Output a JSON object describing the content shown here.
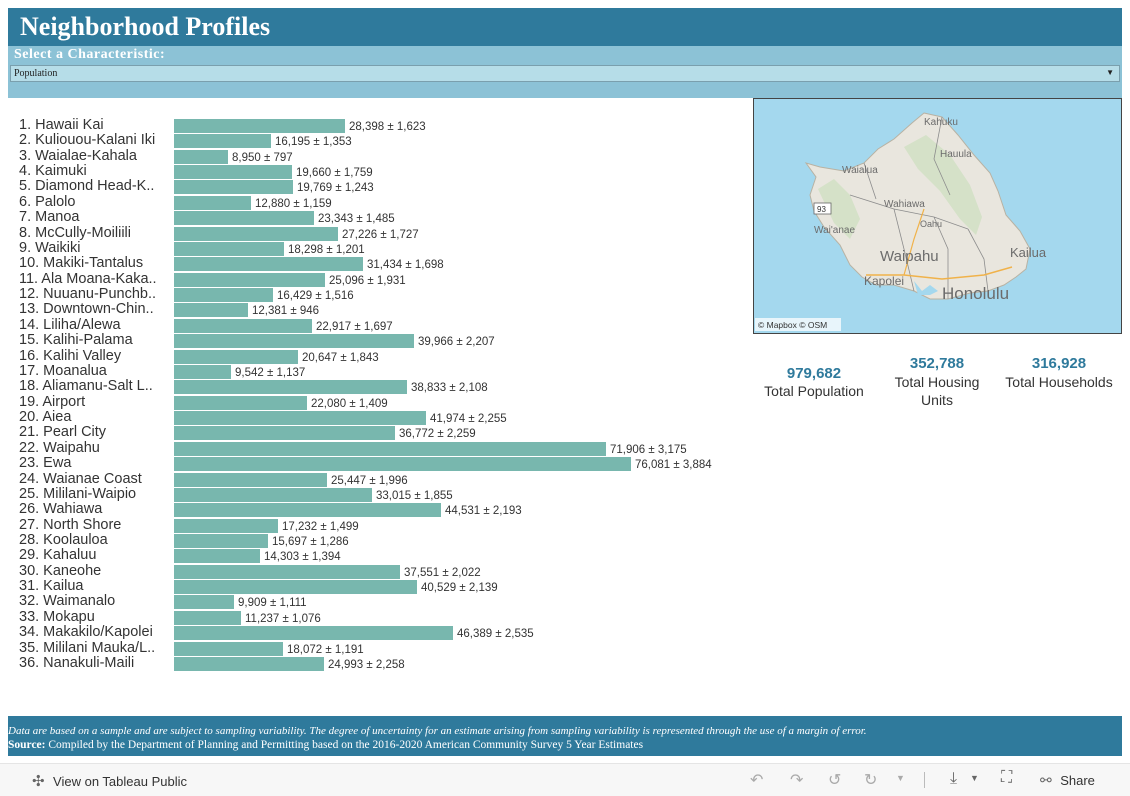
{
  "header": {
    "title": "Neighborhood Profiles"
  },
  "selector": {
    "label": "Select a Characteristic:",
    "selected": "Population"
  },
  "chart_data": {
    "type": "bar",
    "orientation": "horizontal",
    "title": "Population",
    "categories": [
      "1. Hawaii Kai",
      "2. Kuliouou-Kalani Iki",
      "3. Waialae-Kahala",
      "4. Kaimuki",
      "5. Diamond Head-K..",
      "6. Palolo",
      "7. Manoa",
      "8. McCully-Moiliili",
      "9. Waikiki",
      "10. Makiki-Tantalus",
      "11. Ala Moana-Kaka..",
      "12. Nuuanu-Punchb..",
      "13. Downtown-Chin..",
      "14. Liliha/Alewa",
      "15. Kalihi-Palama",
      "16. Kalihi Valley",
      "17. Moanalua",
      "18. Aliamanu-Salt L..",
      "19. Airport",
      "20. Aiea",
      "21. Pearl City",
      "22. Waipahu",
      "23. Ewa",
      "24. Waianae Coast",
      "25. Mililani-Waipio",
      "26. Wahiawa",
      "27. North Shore",
      "28. Koolauloa",
      "29. Kahaluu",
      "30. Kaneohe",
      "31. Kailua",
      "32. Waimanalo",
      "33. Mokapu",
      "34. Makakilo/Kapolei",
      "35. Mililani Mauka/L..",
      "36. Nanakuli-Maili"
    ],
    "values": [
      28398,
      16195,
      8950,
      19660,
      19769,
      12880,
      23343,
      27226,
      18298,
      31434,
      25096,
      16429,
      12381,
      22917,
      39966,
      20647,
      9542,
      38833,
      22080,
      41974,
      36772,
      71906,
      76081,
      25447,
      33015,
      44531,
      17232,
      15697,
      14303,
      37551,
      40529,
      9909,
      11237,
      46389,
      18072,
      24993
    ],
    "labels": [
      "28,398 ± 1,623",
      "16,195 ± 1,353",
      "8,950 ± 797",
      "19,660 ± 1,759",
      "19,769 ± 1,243",
      "12,880 ± 1,159",
      "23,343 ± 1,485",
      "27,226 ± 1,727",
      "18,298 ± 1,201",
      "31,434 ± 1,698",
      "25,096 ± 1,931",
      "16,429 ± 1,516",
      "12,381 ± 946",
      "22,917 ± 1,697",
      "39,966 ± 2,207",
      "20,647 ± 1,843",
      "9,542 ± 1,137",
      "38,833 ± 2,108",
      "22,080 ± 1,409",
      "41,974 ± 2,255",
      "36,772 ± 2,259",
      "71,906 ± 3,175",
      "76,081 ± 3,884",
      "25,447 ± 1,996",
      "33,015 ± 1,855",
      "44,531 ± 2,193",
      "17,232 ± 1,499",
      "15,697 ± 1,286",
      "14,303 ± 1,394",
      "37,551 ± 2,022",
      "40,529 ± 2,139",
      "9,909 ± 1,111",
      "11,237 ± 1,076",
      "46,389 ± 2,535",
      "18,072 ± 1,191",
      "24,993 ± 2,258"
    ],
    "xlim": [
      0,
      76081
    ],
    "bar_color": "#78b7ae"
  },
  "map": {
    "labels": [
      "Kahuku",
      "Hauula",
      "Waialua",
      "Wahiawa",
      "Oahu",
      "Wai'anae",
      "Waipahu",
      "Kailua",
      "Kapolei",
      "Honolulu"
    ],
    "shield": "93",
    "attribution": "© Mapbox  © OSM"
  },
  "kpis": [
    {
      "value": "979,682",
      "label": "Total Population"
    },
    {
      "value": "352,788",
      "label": "Total Housing Units"
    },
    {
      "value": "316,928",
      "label": "Total Households"
    }
  ],
  "footer": {
    "note": "Data are based on a sample and are subject to sampling variability. The degree of uncertainty for an estimate arising from sampling variability is represented through the use of a margin of error.",
    "source_label": "Source:",
    "source_text": "Compiled by the Department of Planning and Permitting based on the 2016-2020 American Community Survey 5 Year Estimates"
  },
  "toolbar": {
    "view_label": "View on Tableau Public",
    "share_label": "Share"
  },
  "colors": {
    "header": "#2f7a9c",
    "select_bar": "#8cc2d6",
    "dropdown": "#b6dde8",
    "bar": "#78b7ae",
    "kpi": "#2f7a9c"
  }
}
